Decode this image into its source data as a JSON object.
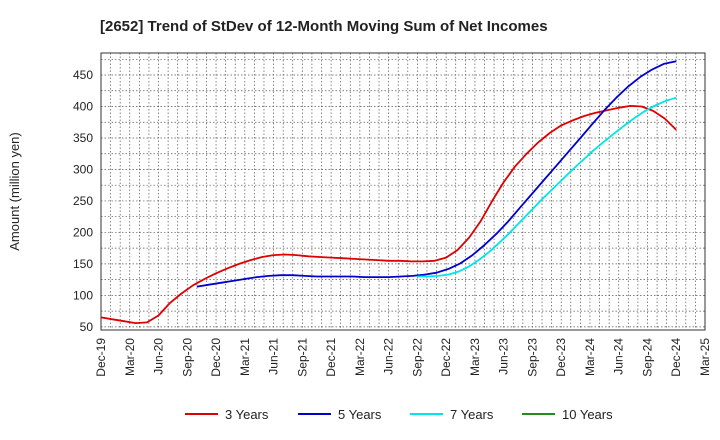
{
  "chart_data": {
    "type": "line",
    "title": "[2652]  Trend of StDev of 12-Month Moving Sum of Net Incomes",
    "ylabel": "Amount (million yen)",
    "xlabel": "",
    "ylim": [
      45,
      485
    ],
    "yticks": [
      50,
      100,
      150,
      200,
      250,
      300,
      350,
      400,
      450
    ],
    "xticks": [
      "Dec-19",
      "Mar-20",
      "Jun-20",
      "Sep-20",
      "Dec-20",
      "Mar-21",
      "Jun-21",
      "Sep-21",
      "Dec-21",
      "Mar-22",
      "Jun-22",
      "Sep-22",
      "Dec-22",
      "Mar-23",
      "Jun-23",
      "Sep-23",
      "Dec-23",
      "Mar-24",
      "Jun-24",
      "Sep-24",
      "Dec-24",
      "Mar-25"
    ],
    "grid": true,
    "legend_position": "bottom",
    "series": [
      {
        "name": "3 Years",
        "color": "#dd0000",
        "values": [
          65,
          62,
          59,
          56,
          57,
          68,
          88,
          103,
          116,
          126,
          135,
          143,
          150,
          156,
          161,
          164,
          165,
          164,
          162,
          161,
          160,
          159,
          158,
          157,
          156,
          155,
          155,
          154,
          154,
          155,
          160,
          172,
          192,
          218,
          250,
          280,
          305,
          325,
          343,
          358,
          370,
          378,
          385,
          390,
          394,
          398,
          401,
          400,
          393,
          381,
          363
        ]
      },
      {
        "name": "5 Years",
        "color": "#0000cc",
        "values": [
          null,
          null,
          null,
          null,
          null,
          null,
          null,
          null,
          114,
          117,
          120,
          123,
          126,
          129,
          131,
          132,
          132,
          131,
          130,
          130,
          130,
          130,
          129,
          129,
          129,
          130,
          131,
          133,
          136,
          142,
          151,
          164,
          180,
          198,
          218,
          240,
          262,
          284,
          306,
          328,
          350,
          372,
          394,
          414,
          432,
          447,
          459,
          468,
          472
        ]
      },
      {
        "name": "7 Years",
        "color": "#00e5e5",
        "values": [
          null,
          null,
          null,
          null,
          null,
          null,
          null,
          null,
          null,
          null,
          null,
          null,
          null,
          null,
          null,
          null,
          null,
          null,
          null,
          null,
          null,
          null,
          null,
          null,
          null,
          null,
          null,
          null,
          null,
          null,
          null,
          null,
          null,
          null,
          null,
          null,
          null,
          null,
          null,
          null,
          null,
          null,
          null,
          null,
          null,
          null,
          null,
          null,
          null,
          null,
          null,
          null,
          null,
          null,
          null,
          null,
          null,
          null,
          null,
          null,
          null,
          null,
          null,
          null,
          null,
          null,
          null,
          null,
          null,
          null,
          null
        ]
      },
      {
        "name": "10 Years",
        "color": "#228b22",
        "values": []
      }
    ],
    "series_7y": [
      130,
      130,
      131,
      133,
      138,
      146,
      157,
      170,
      185,
      201,
      218,
      235,
      252,
      268,
      284,
      300,
      315,
      330,
      344,
      357,
      370,
      382,
      393,
      402,
      409,
      414
    ],
    "series_7y_start_index": 39
  }
}
